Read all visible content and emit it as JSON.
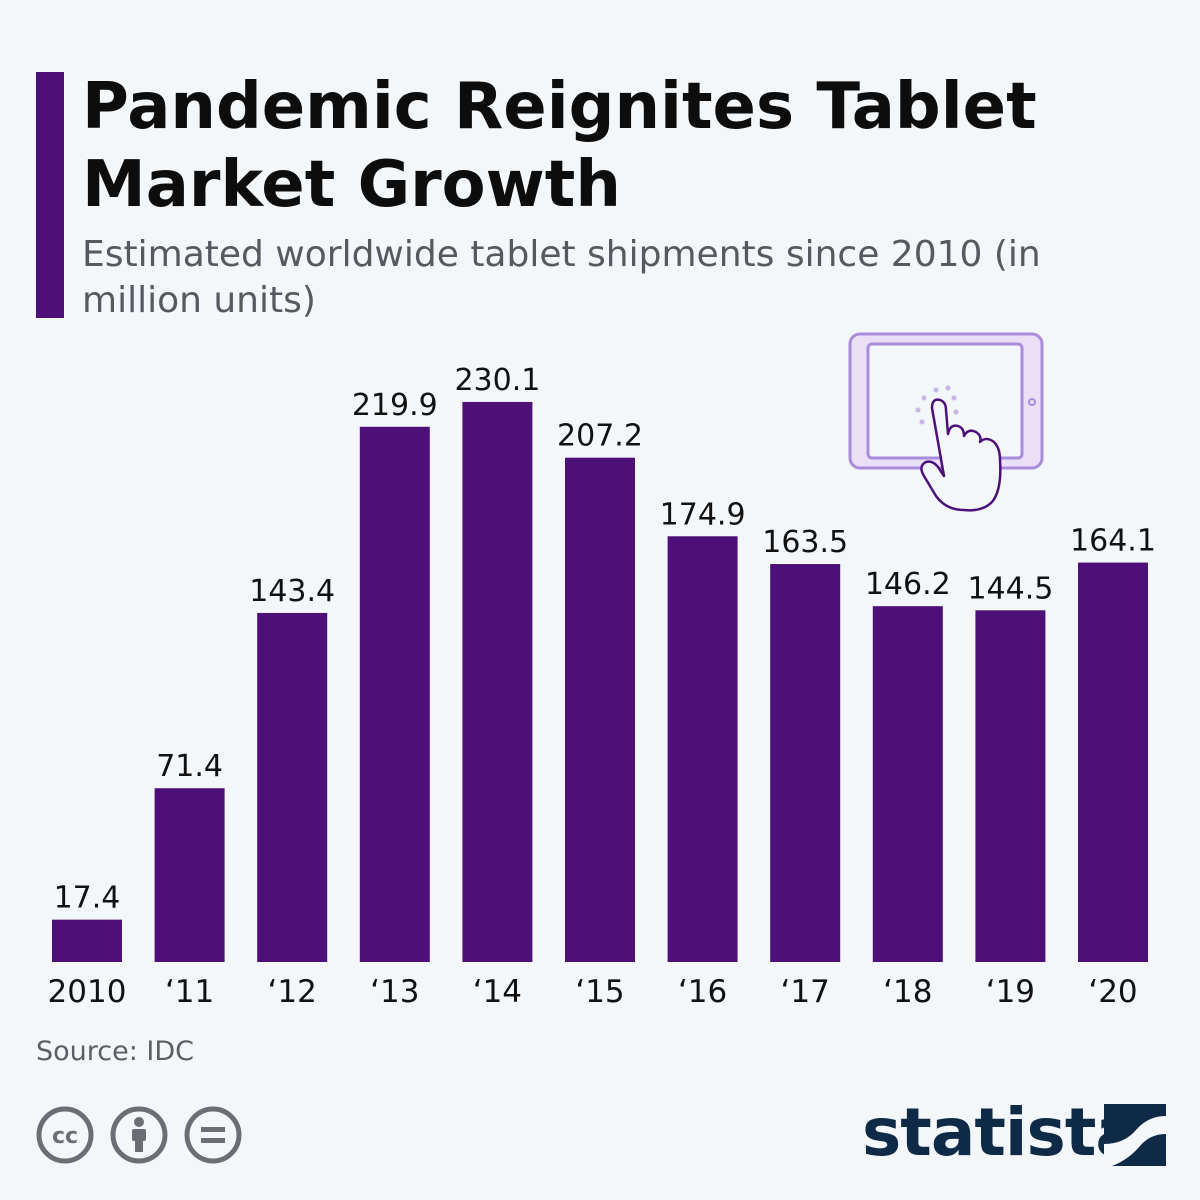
{
  "header": {
    "title": "Pandemic Reignites Tablet Market Growth",
    "subtitle": "Estimated worldwide tablet shipments since 2010 (in million units)"
  },
  "chart_data": {
    "type": "bar",
    "categories": [
      "2010",
      "‘11",
      "‘12",
      "‘13",
      "‘14",
      "‘15",
      "‘16",
      "‘17",
      "‘18",
      "‘19",
      "‘20"
    ],
    "values": [
      17.4,
      71.4,
      143.4,
      219.9,
      230.1,
      207.2,
      174.9,
      163.5,
      146.2,
      144.5,
      164.1
    ],
    "value_labels": [
      "17.4",
      "71.4",
      "143.4",
      "219.9",
      "230.1",
      "207.2",
      "174.9",
      "163.5",
      "146.2",
      "144.5",
      "164.1"
    ],
    "bar_color": "#4d1078",
    "grid": false,
    "legend": "none"
  },
  "footer": {
    "source": "Source: IDC",
    "brand": "statista",
    "license_icons": [
      "creative-commons-icon",
      "attribution-icon",
      "no-derivatives-icon"
    ]
  },
  "colors": {
    "accent": "#4d1078",
    "background": "#f4f7fa",
    "brand": "#0e2a47",
    "illustration": "#a98ddc"
  },
  "illustration": "tablet-touch-icon"
}
